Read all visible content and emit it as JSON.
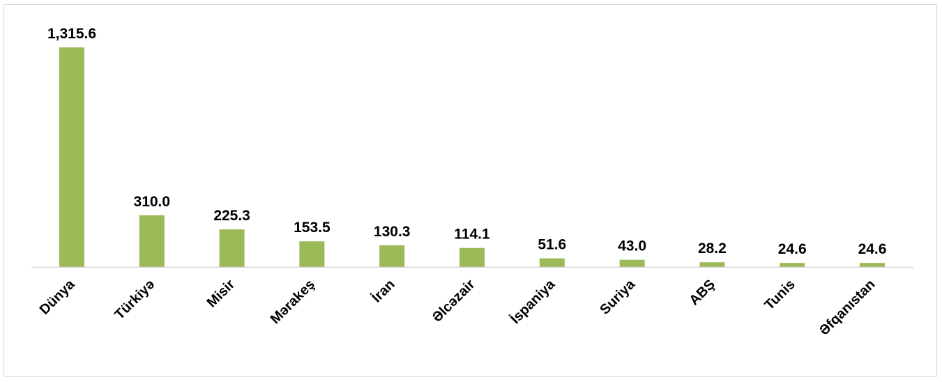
{
  "chart_data": {
    "type": "bar",
    "categories": [
      "Dünya",
      "Türkiyə",
      "Misir",
      "Mərakeş",
      "İran",
      "Əlcəzair",
      "İspaniya",
      "Suriya",
      "ABŞ",
      "Tunis",
      "Əfqanıstan"
    ],
    "values": [
      1315.6,
      310.0,
      225.3,
      153.5,
      130.3,
      114.1,
      51.6,
      43.0,
      28.2,
      24.6,
      24.6
    ],
    "value_labels": [
      "1,315.6",
      "310.0",
      "225.3",
      "153.5",
      "130.3",
      "114.1",
      "51.6",
      "43.0",
      "28.2",
      "24.6",
      "24.6"
    ],
    "title": "",
    "xlabel": "",
    "ylabel": "",
    "ylim": [
      0,
      1315.6
    ],
    "grid": false,
    "legend": "none",
    "bar_color": "#9bbb59",
    "axis_color": "#d9d9d9"
  }
}
